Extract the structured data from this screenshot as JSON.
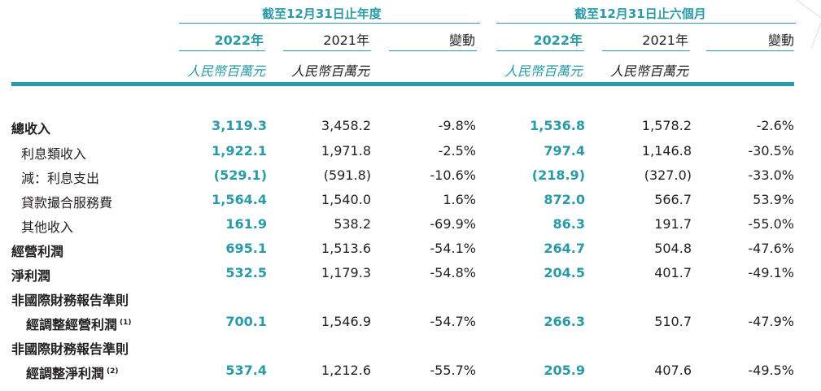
{
  "header": {
    "group_year": "截至12月31日止年度",
    "group_six": "截至12月31日止六個月",
    "col_2022": "2022年",
    "col_2021": "2021年",
    "col_change": "變動",
    "unit": "人民幣百萬元"
  },
  "rows": [
    {
      "label": "總收入",
      "v": [
        "3,119.3",
        "3,458.2",
        "-9.8%",
        "1,536.8",
        "1,578.2",
        "-2.6%"
      ]
    },
    {
      "label": "利息類收入",
      "v": [
        "1,922.1",
        "1,971.8",
        "-2.5%",
        "797.4",
        "1,146.8",
        "-30.5%"
      ]
    },
    {
      "label": "減：利息支出",
      "v": [
        "(529.1)",
        "(591.8)",
        "-10.6%",
        "(218.9)",
        "(327.0)",
        "-33.0%"
      ]
    },
    {
      "label": "貸款撮合服務費",
      "v": [
        "1,564.4",
        "1,540.0",
        "1.6%",
        "872.0",
        "566.7",
        "53.9%"
      ]
    },
    {
      "label": "其他收入",
      "v": [
        "161.9",
        "538.2",
        "-69.9%",
        "86.3",
        "191.7",
        "-55.0%"
      ]
    },
    {
      "label": "經營利潤",
      "v": [
        "695.1",
        "1,513.6",
        "-54.1%",
        "264.7",
        "504.8",
        "-47.6%"
      ]
    },
    {
      "label": "淨利潤",
      "v": [
        "532.5",
        "1,179.3",
        "-54.8%",
        "204.5",
        "401.7",
        "-49.1%"
      ]
    },
    {
      "label": "非國際財務報告準則"
    },
    {
      "label": "經調整經營利潤",
      "note": "(1)",
      "v": [
        "700.1",
        "1,546.9",
        "-54.7%",
        "266.3",
        "510.7",
        "-47.9%"
      ]
    },
    {
      "label": "非國際財務報告準則"
    },
    {
      "label": "經調整淨利潤",
      "note": "(2)",
      "v": [
        "537.4",
        "1,212.6",
        "-55.7%",
        "205.9",
        "407.6",
        "-49.5%"
      ]
    }
  ]
}
